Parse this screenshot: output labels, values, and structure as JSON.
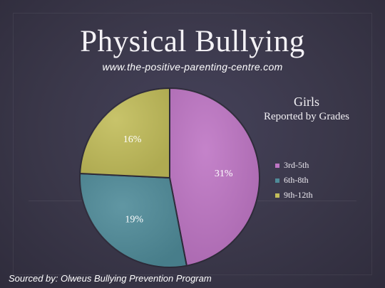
{
  "title": "Physical Bullying",
  "subtitle": "www.the-positive-parenting-centre.com",
  "source": "Sourced by: Olweus Bullying Prevention Program",
  "chart_data": {
    "type": "pie",
    "title": "Girls",
    "subtitle": "Reported by Grades",
    "slices": [
      {
        "label": "3rd-5th",
        "value": 31,
        "display": "31%",
        "color": "#be75c4"
      },
      {
        "label": "6th-8th",
        "value": 19,
        "display": "19%",
        "color": "#4f8b99"
      },
      {
        "label": "9th-12th",
        "value": 16,
        "display": "16%",
        "color": "#c2bd5a"
      }
    ],
    "legend_position": "right"
  }
}
